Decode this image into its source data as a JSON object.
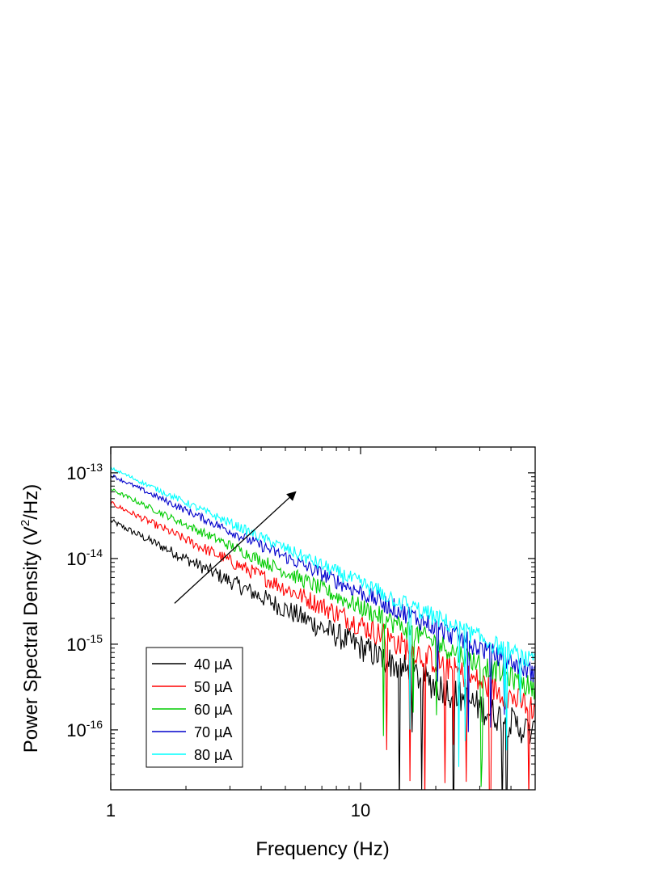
{
  "chart_data": {
    "type": "line",
    "title": "",
    "xlabel": "Frequency (Hz)",
    "ylabel": "Power Spectral Density (V²/Hz)",
    "ylabel_parts": {
      "main": "Power Spectral Density (V",
      "sup": "2",
      "tail": "/Hz)"
    },
    "x_scale": "log",
    "y_scale": "log",
    "xlim": [
      1,
      50
    ],
    "ylim": [
      2e-17,
      2e-13
    ],
    "x_ticks": [
      {
        "value": 1,
        "label": "1"
      },
      {
        "value": 10,
        "label": "10"
      }
    ],
    "y_ticks": [
      {
        "value": 1e-13,
        "base": "10",
        "exp": "-13"
      },
      {
        "value": 1e-14,
        "base": "10",
        "exp": "-14"
      },
      {
        "value": 1e-15,
        "base": "10",
        "exp": "-15"
      },
      {
        "value": 1e-16,
        "base": "10",
        "exp": "-16"
      }
    ],
    "grid": false,
    "legend_position": "bottom-left",
    "annotation": {
      "type": "arrow",
      "from": [
        1.8,
        3e-15
      ],
      "to": [
        5.5,
        6e-14
      ],
      "meaning": "increasing current"
    },
    "series": [
      {
        "name": "40 µA",
        "color": "#000000",
        "a": 2.8e-14,
        "exponent": 1.45,
        "noise": 0.38
      },
      {
        "name": "50 µA",
        "color": "#ff0000",
        "a": 4.5e-14,
        "exponent": 1.4,
        "noise": 0.32
      },
      {
        "name": "60 µA",
        "color": "#00cc00",
        "a": 6.5e-14,
        "exponent": 1.36,
        "noise": 0.26
      },
      {
        "name": "70 µA",
        "color": "#0000cc",
        "a": 9.5e-14,
        "exponent": 1.35,
        "noise": 0.24
      },
      {
        "name": "80 µA",
        "color": "#00ffff",
        "a": 1.15e-13,
        "exponent": 1.33,
        "noise": 0.22
      }
    ]
  }
}
